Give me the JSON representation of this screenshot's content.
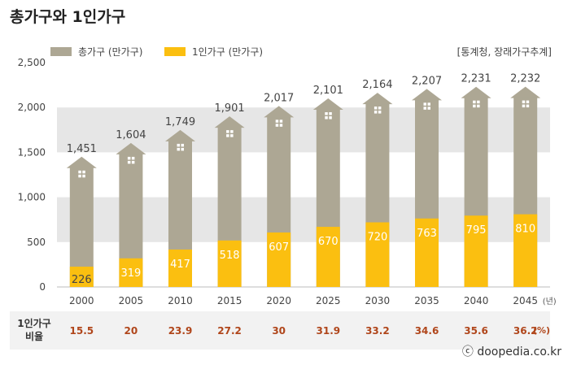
{
  "title": "총가구와 1인가구",
  "source": "[통계청, 장래가구추계]",
  "copyright": "ⓒ doopedia.co.kr",
  "ratio": {
    "label_line1": "1인가구",
    "label_line2": "비율",
    "values": [
      "15.5",
      "20",
      "23.9",
      "27.2",
      "30",
      "31.9",
      "33.2",
      "34.6",
      "35.6",
      "36.2"
    ],
    "unit": "(%)"
  },
  "chart_data": {
    "type": "bar",
    "categories": [
      "2000",
      "2005",
      "2010",
      "2015",
      "2020",
      "2025",
      "2030",
      "2035",
      "2040",
      "2045"
    ],
    "x_unit": "(년)",
    "series": [
      {
        "name": "총가구 (만가구)",
        "color": "#ada794",
        "values": [
          1451,
          1604,
          1749,
          1901,
          2017,
          2101,
          2164,
          2207,
          2231,
          2232
        ],
        "labels": [
          "1,451",
          "1,604",
          "1,749",
          "1,901",
          "2,017",
          "2,101",
          "2,164",
          "2,207",
          "2,231",
          "2,232"
        ]
      },
      {
        "name": "1인가구 (만가구)",
        "color": "#fbbf10",
        "values": [
          226,
          319,
          417,
          518,
          607,
          670,
          720,
          763,
          795,
          810
        ],
        "labels": [
          "226",
          "319",
          "417",
          "518",
          "607",
          "670",
          "720",
          "763",
          "795",
          "810"
        ]
      }
    ],
    "ylim": [
      0,
      2500
    ],
    "yticks": [
      0,
      500,
      1000,
      1500,
      2000,
      2500
    ],
    "ytick_labels": [
      "0",
      "500",
      "1,000",
      "1,500",
      "2,000",
      "2,500"
    ],
    "grid": "alternating horizontal bands",
    "legend": "top-left",
    "overlap": true
  }
}
